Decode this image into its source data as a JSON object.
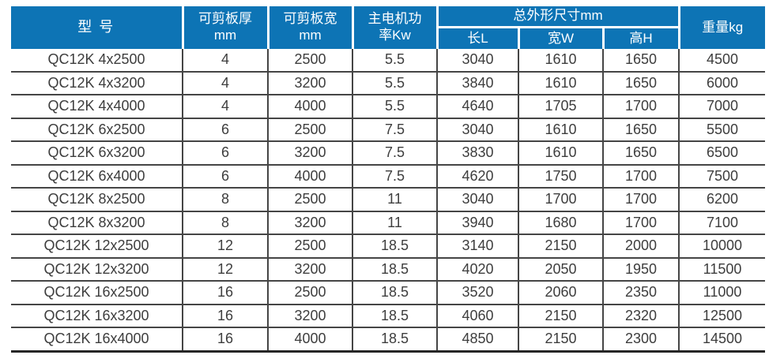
{
  "table": {
    "headers": {
      "model": "型 号",
      "thickness_line1": "可剪板厚",
      "thickness_line2": "mm",
      "width_line1": "可剪板宽",
      "width_line2": "mm",
      "power_line1": "主电机功",
      "power_line2": "率Kw",
      "dimensions_group": "总外形尺寸mm",
      "length": "长L",
      "width_w": "宽W",
      "height_h": "高H",
      "weight": "重量kg"
    },
    "rows": [
      [
        "QC12K 4x2500",
        "4",
        "2500",
        "5.5",
        "3040",
        "1610",
        "1650",
        "4500"
      ],
      [
        "QC12K 4x3200",
        "4",
        "3200",
        "5.5",
        "3840",
        "1610",
        "1650",
        "6000"
      ],
      [
        "QC12K 4x4000",
        "4",
        "4000",
        "5.5",
        "4640",
        "1705",
        "1700",
        "7000"
      ],
      [
        "QC12K 6x2500",
        "6",
        "2500",
        "7.5",
        "3040",
        "1610",
        "1650",
        "5500"
      ],
      [
        "QC12K 6x3200",
        "6",
        "3200",
        "7.5",
        "3830",
        "1610",
        "1650",
        "6500"
      ],
      [
        "QC12K 6x4000",
        "6",
        "4000",
        "7.5",
        "4620",
        "1750",
        "1700",
        "7500"
      ],
      [
        "QC12K 8x2500",
        "8",
        "2500",
        "11",
        "3040",
        "1700",
        "1700",
        "6200"
      ],
      [
        "QC12K 8x3200",
        "8",
        "3200",
        "11",
        "3940",
        "1680",
        "1700",
        "7100"
      ],
      [
        "QC12K 12x2500",
        "12",
        "2500",
        "18.5",
        "3140",
        "2150",
        "2000",
        "10000"
      ],
      [
        "QC12K 12x3200",
        "12",
        "3200",
        "18.5",
        "4020",
        "2050",
        "1950",
        "11500"
      ],
      [
        "QC12K 16x2500",
        "16",
        "2500",
        "18.5",
        "3520",
        "2060",
        "2350",
        "11000"
      ],
      [
        "QC12K 16x3200",
        "16",
        "3200",
        "18.5",
        "4060",
        "2150",
        "2320",
        "12500"
      ],
      [
        "QC12K 16x4000",
        "16",
        "4000",
        "18.5",
        "4850",
        "2150",
        "2300",
        "14500"
      ]
    ],
    "column_names": [
      "model",
      "cut-thickness-mm",
      "cut-width-mm",
      "motor-power-kw",
      "length-l",
      "width-w",
      "height-h",
      "weight-kg"
    ]
  },
  "colors": {
    "header_bg": "#0d74b5",
    "header_text": "#ffffff",
    "cell_text": "#3d3d3d",
    "grid_line": "#454545"
  }
}
